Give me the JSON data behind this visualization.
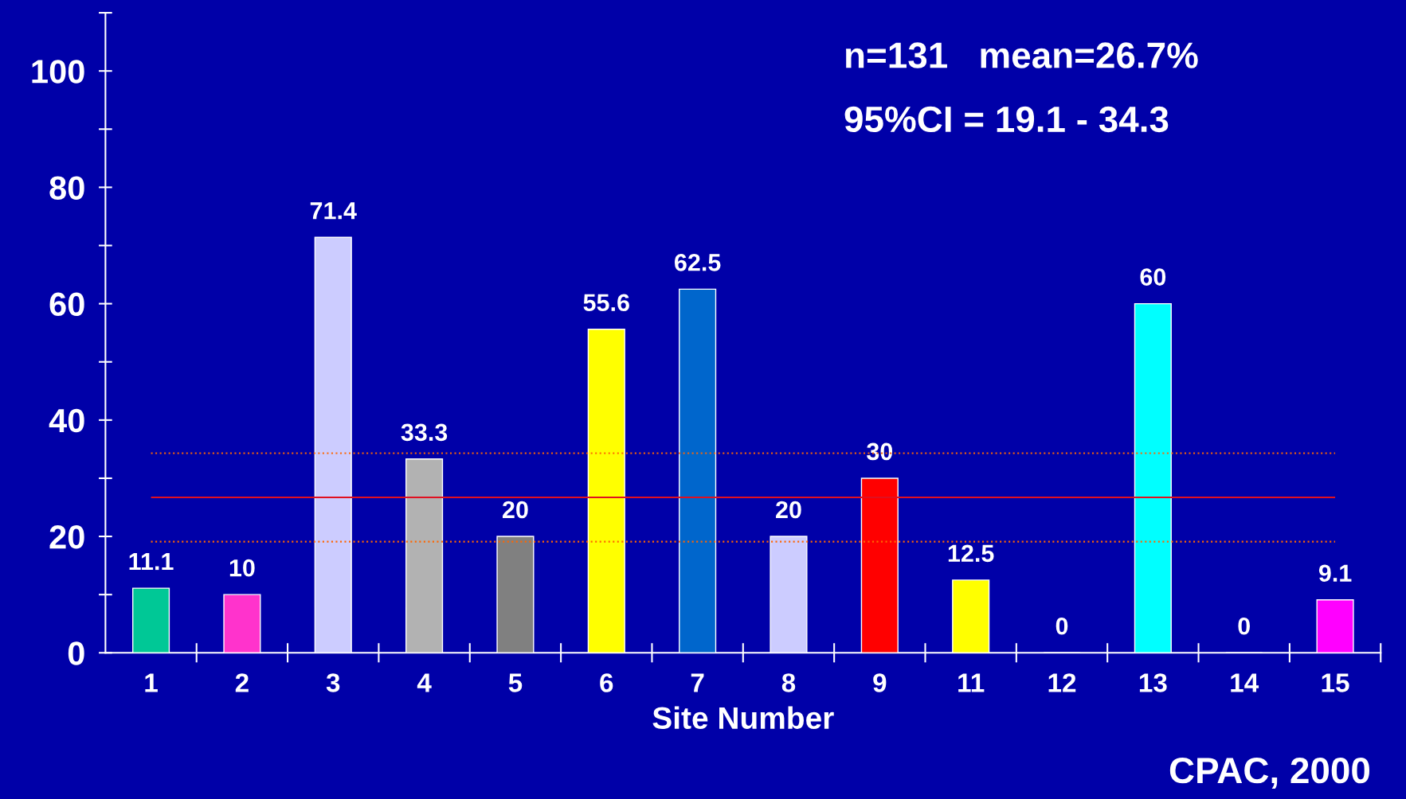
{
  "chart_data": {
    "type": "bar",
    "xlabel": "Site Number",
    "categories": [
      "1",
      "2",
      "3",
      "4",
      "5",
      "6",
      "7",
      "8",
      "9",
      "11",
      "12",
      "13",
      "14",
      "15"
    ],
    "values": [
      11.1,
      10,
      71.4,
      33.3,
      20,
      55.6,
      62.5,
      20,
      30,
      12.5,
      0,
      60,
      0,
      9.1
    ],
    "colors": [
      "#00c896",
      "#ff33cc",
      "#ccccff",
      "#b2b2b2",
      "#808080",
      "#ffff00",
      "#0066cc",
      "#ccccff",
      "#ff0000",
      "#ffff00",
      "#ffffff",
      "#00ffff",
      "#ffffff",
      "#ff00ff"
    ],
    "data_labels": true,
    "ylim": [
      0,
      110
    ],
    "yticks": [
      0,
      20,
      40,
      60,
      80,
      100
    ],
    "ref_lines": [
      {
        "axis": "y",
        "value": 26.7,
        "label": null,
        "color": "#e01020",
        "line_style": "solid"
      },
      {
        "axis": "y",
        "value": 19.1,
        "label": null,
        "color": "#ff6600",
        "line_style": "dotted"
      },
      {
        "axis": "y",
        "value": 34.3,
        "label": null,
        "color": "#ff6600",
        "line_style": "dotted"
      }
    ],
    "annotations": [
      "n=131   mean=26.7%",
      "95%CI = 19.1 - 34.3",
      "CPAC, 2000"
    ],
    "grid": false,
    "legend": false
  }
}
